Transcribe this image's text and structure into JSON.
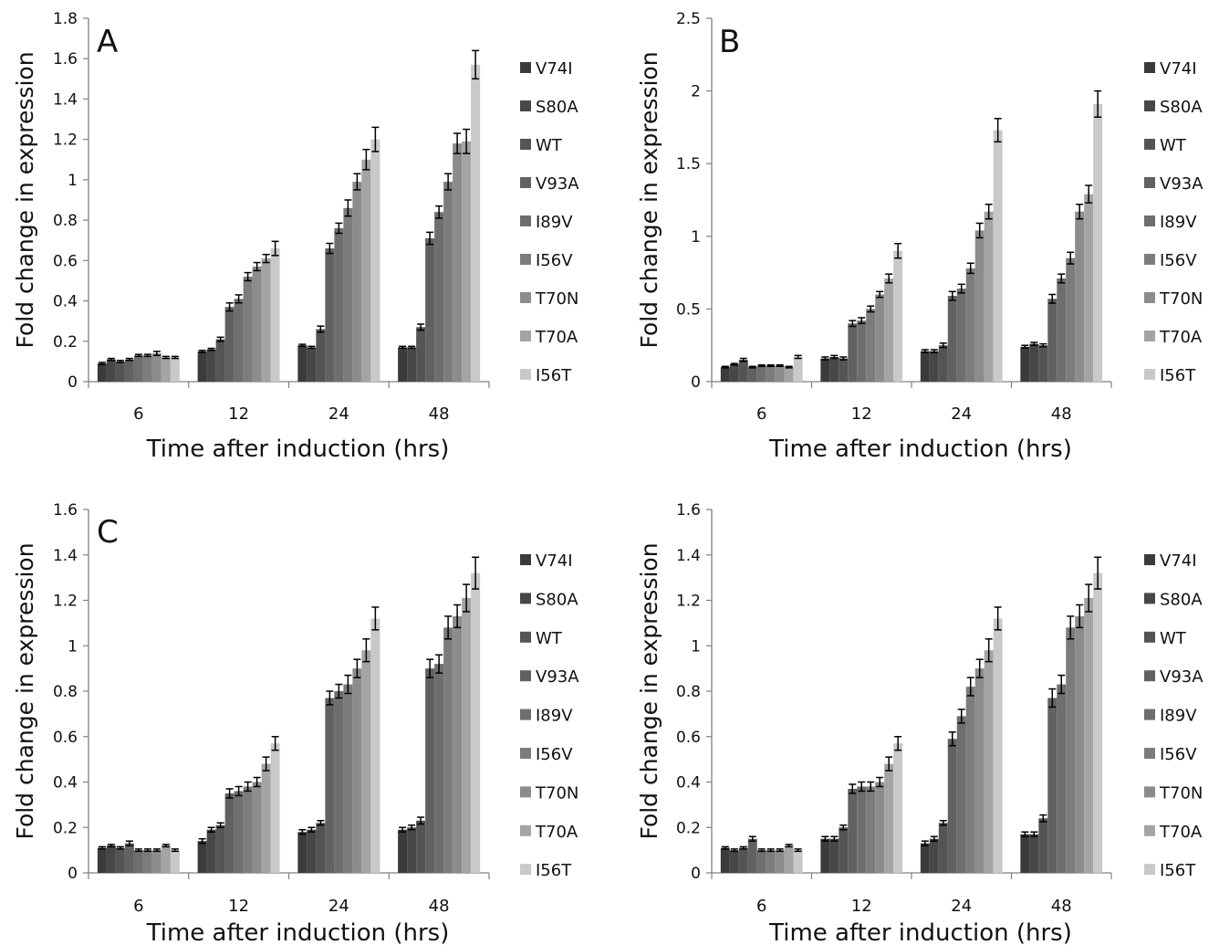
{
  "chart_data": [
    {
      "panel_label": "A",
      "type": "bar",
      "xlabel": "Time after induction (hrs)",
      "ylabel": "Fold change in expression",
      "categories": [
        "6",
        "12",
        "24",
        "48"
      ],
      "ylim": [
        0,
        1.8
      ],
      "yticks": [
        "0",
        "0.2",
        "0.4",
        "0.6",
        "0.8",
        "1",
        "1.2",
        "1.4",
        "1.6",
        "1.8"
      ],
      "legend_position": "right",
      "grid": false,
      "series": [
        {
          "name": "V74I",
          "color": "#3b3b3b",
          "values": [
            0.09,
            0.15,
            0.18,
            0.17
          ],
          "errors": [
            0.005,
            0.005,
            0.005,
            0.005
          ]
        },
        {
          "name": "S80A",
          "color": "#474747",
          "values": [
            0.11,
            0.16,
            0.17,
            0.17
          ],
          "errors": [
            0.005,
            0.005,
            0.005,
            0.005
          ]
        },
        {
          "name": "WT",
          "color": "#545454",
          "values": [
            0.1,
            0.21,
            0.26,
            0.27
          ],
          "errors": [
            0.005,
            0.01,
            0.015,
            0.015
          ]
        },
        {
          "name": "V93A",
          "color": "#616161",
          "values": [
            0.11,
            0.37,
            0.66,
            0.71
          ],
          "errors": [
            0.005,
            0.02,
            0.025,
            0.03
          ]
        },
        {
          "name": "I89V",
          "color": "#6e6e6e",
          "values": [
            0.13,
            0.41,
            0.76,
            0.84
          ],
          "errors": [
            0.005,
            0.02,
            0.025,
            0.03
          ]
        },
        {
          "name": "I56V",
          "color": "#7c7c7c",
          "values": [
            0.13,
            0.52,
            0.86,
            0.99
          ],
          "errors": [
            0.005,
            0.02,
            0.04,
            0.04
          ]
        },
        {
          "name": "T70N",
          "color": "#8c8c8c",
          "values": [
            0.14,
            0.57,
            0.99,
            1.18
          ],
          "errors": [
            0.01,
            0.02,
            0.04,
            0.05
          ]
        },
        {
          "name": "T70A",
          "color": "#a4a4a4",
          "values": [
            0.12,
            0.61,
            1.1,
            1.19
          ],
          "errors": [
            0.005,
            0.02,
            0.05,
            0.06
          ]
        },
        {
          "name": "I56T",
          "color": "#c9c9c9",
          "values": [
            0.12,
            0.66,
            1.2,
            1.57
          ],
          "errors": [
            0.005,
            0.035,
            0.06,
            0.07
          ]
        }
      ]
    },
    {
      "panel_label": "B",
      "type": "bar",
      "xlabel": "Time after induction (hrs)",
      "ylabel": "Fold change in expression",
      "categories": [
        "6",
        "12",
        "24",
        "48"
      ],
      "ylim": [
        0,
        2.5
      ],
      "yticks": [
        "0",
        "0.5",
        "1",
        "1.5",
        "2",
        "2.5"
      ],
      "legend_position": "right",
      "grid": false,
      "series": [
        {
          "name": "V74I",
          "color": "#3b3b3b",
          "values": [
            0.1,
            0.16,
            0.21,
            0.24
          ],
          "errors": [
            0.005,
            0.01,
            0.01,
            0.01
          ]
        },
        {
          "name": "S80A",
          "color": "#474747",
          "values": [
            0.12,
            0.17,
            0.21,
            0.26
          ],
          "errors": [
            0.005,
            0.01,
            0.01,
            0.01
          ]
        },
        {
          "name": "WT",
          "color": "#545454",
          "values": [
            0.15,
            0.16,
            0.25,
            0.25
          ],
          "errors": [
            0.01,
            0.01,
            0.015,
            0.01
          ]
        },
        {
          "name": "V93A",
          "color": "#616161",
          "values": [
            0.1,
            0.4,
            0.59,
            0.57
          ],
          "errors": [
            0.005,
            0.02,
            0.03,
            0.03
          ]
        },
        {
          "name": "I89V",
          "color": "#6e6e6e",
          "values": [
            0.11,
            0.42,
            0.64,
            0.71
          ],
          "errors": [
            0.005,
            0.02,
            0.03,
            0.03
          ]
        },
        {
          "name": "I56V",
          "color": "#7c7c7c",
          "values": [
            0.11,
            0.5,
            0.78,
            0.85
          ],
          "errors": [
            0.005,
            0.02,
            0.035,
            0.04
          ]
        },
        {
          "name": "T70N",
          "color": "#8c8c8c",
          "values": [
            0.11,
            0.6,
            1.04,
            1.17
          ],
          "errors": [
            0.005,
            0.02,
            0.05,
            0.05
          ]
        },
        {
          "name": "T70A",
          "color": "#a4a4a4",
          "values": [
            0.1,
            0.71,
            1.17,
            1.29
          ],
          "errors": [
            0.005,
            0.03,
            0.05,
            0.06
          ]
        },
        {
          "name": "I56T",
          "color": "#c9c9c9",
          "values": [
            0.17,
            0.9,
            1.73,
            1.91
          ],
          "errors": [
            0.01,
            0.05,
            0.08,
            0.09
          ]
        }
      ]
    },
    {
      "panel_label": "C",
      "type": "bar",
      "xlabel": "Time after induction (hrs)",
      "ylabel": "Fold change in expression",
      "categories": [
        "6",
        "12",
        "24",
        "48"
      ],
      "ylim": [
        0,
        1.6
      ],
      "yticks": [
        "0",
        "0.2",
        "0.4",
        "0.6",
        "0.8",
        "1",
        "1.2",
        "1.4",
        "1.6"
      ],
      "legend_position": "right",
      "grid": false,
      "series": [
        {
          "name": "V74I",
          "color": "#3b3b3b",
          "values": [
            0.11,
            0.14,
            0.18,
            0.19
          ],
          "errors": [
            0.005,
            0.01,
            0.01,
            0.01
          ]
        },
        {
          "name": "S80A",
          "color": "#474747",
          "values": [
            0.12,
            0.19,
            0.19,
            0.2
          ],
          "errors": [
            0.005,
            0.01,
            0.01,
            0.01
          ]
        },
        {
          "name": "WT",
          "color": "#545454",
          "values": [
            0.11,
            0.21,
            0.22,
            0.23
          ],
          "errors": [
            0.005,
            0.01,
            0.01,
            0.015
          ]
        },
        {
          "name": "V93A",
          "color": "#616161",
          "values": [
            0.13,
            0.35,
            0.77,
            0.9
          ],
          "errors": [
            0.01,
            0.02,
            0.03,
            0.04
          ]
        },
        {
          "name": "I89V",
          "color": "#6e6e6e",
          "values": [
            0.1,
            0.36,
            0.8,
            0.92
          ],
          "errors": [
            0.005,
            0.02,
            0.03,
            0.04
          ]
        },
        {
          "name": "I56V",
          "color": "#7c7c7c",
          "values": [
            0.1,
            0.38,
            0.83,
            1.08
          ],
          "errors": [
            0.005,
            0.02,
            0.04,
            0.05
          ]
        },
        {
          "name": "T70N",
          "color": "#8c8c8c",
          "values": [
            0.1,
            0.4,
            0.9,
            1.13
          ],
          "errors": [
            0.005,
            0.02,
            0.04,
            0.05
          ]
        },
        {
          "name": "T70A",
          "color": "#a4a4a4",
          "values": [
            0.12,
            0.48,
            0.98,
            1.21
          ],
          "errors": [
            0.005,
            0.03,
            0.05,
            0.06
          ]
        },
        {
          "name": "I56T",
          "color": "#c9c9c9",
          "values": [
            0.1,
            0.57,
            1.12,
            1.32
          ],
          "errors": [
            0.005,
            0.03,
            0.05,
            0.07
          ]
        }
      ]
    },
    {
      "panel_label": "",
      "type": "bar",
      "xlabel": "Time after induction (hrs)",
      "ylabel": "Fold change in expression",
      "categories": [
        "6",
        "12",
        "24",
        "48"
      ],
      "ylim": [
        0,
        1.6
      ],
      "yticks": [
        "0",
        "0.2",
        "0.4",
        "0.6",
        "0.8",
        "1",
        "1.2",
        "1.4",
        "1.6"
      ],
      "legend_position": "right",
      "grid": false,
      "series": [
        {
          "name": "V74I",
          "color": "#3b3b3b",
          "values": [
            0.11,
            0.15,
            0.13,
            0.17
          ],
          "errors": [
            0.005,
            0.01,
            0.01,
            0.01
          ]
        },
        {
          "name": "S80A",
          "color": "#474747",
          "values": [
            0.1,
            0.15,
            0.15,
            0.17
          ],
          "errors": [
            0.005,
            0.01,
            0.01,
            0.01
          ]
        },
        {
          "name": "WT",
          "color": "#545454",
          "values": [
            0.11,
            0.2,
            0.22,
            0.24
          ],
          "errors": [
            0.005,
            0.01,
            0.01,
            0.015
          ]
        },
        {
          "name": "V93A",
          "color": "#616161",
          "values": [
            0.15,
            0.37,
            0.59,
            0.77
          ],
          "errors": [
            0.01,
            0.02,
            0.03,
            0.04
          ]
        },
        {
          "name": "I89V",
          "color": "#6e6e6e",
          "values": [
            0.1,
            0.38,
            0.69,
            0.83
          ],
          "errors": [
            0.005,
            0.02,
            0.03,
            0.04
          ]
        },
        {
          "name": "I56V",
          "color": "#7c7c7c",
          "values": [
            0.1,
            0.38,
            0.82,
            1.08
          ],
          "errors": [
            0.005,
            0.02,
            0.04,
            0.05
          ]
        },
        {
          "name": "T70N",
          "color": "#8c8c8c",
          "values": [
            0.1,
            0.4,
            0.9,
            1.13
          ],
          "errors": [
            0.005,
            0.02,
            0.04,
            0.05
          ]
        },
        {
          "name": "T70A",
          "color": "#a4a4a4",
          "values": [
            0.12,
            0.48,
            0.98,
            1.21
          ],
          "errors": [
            0.005,
            0.03,
            0.05,
            0.06
          ]
        },
        {
          "name": "I56T",
          "color": "#c9c9c9",
          "values": [
            0.1,
            0.57,
            1.12,
            1.32
          ],
          "errors": [
            0.005,
            0.03,
            0.05,
            0.07
          ]
        }
      ]
    }
  ]
}
